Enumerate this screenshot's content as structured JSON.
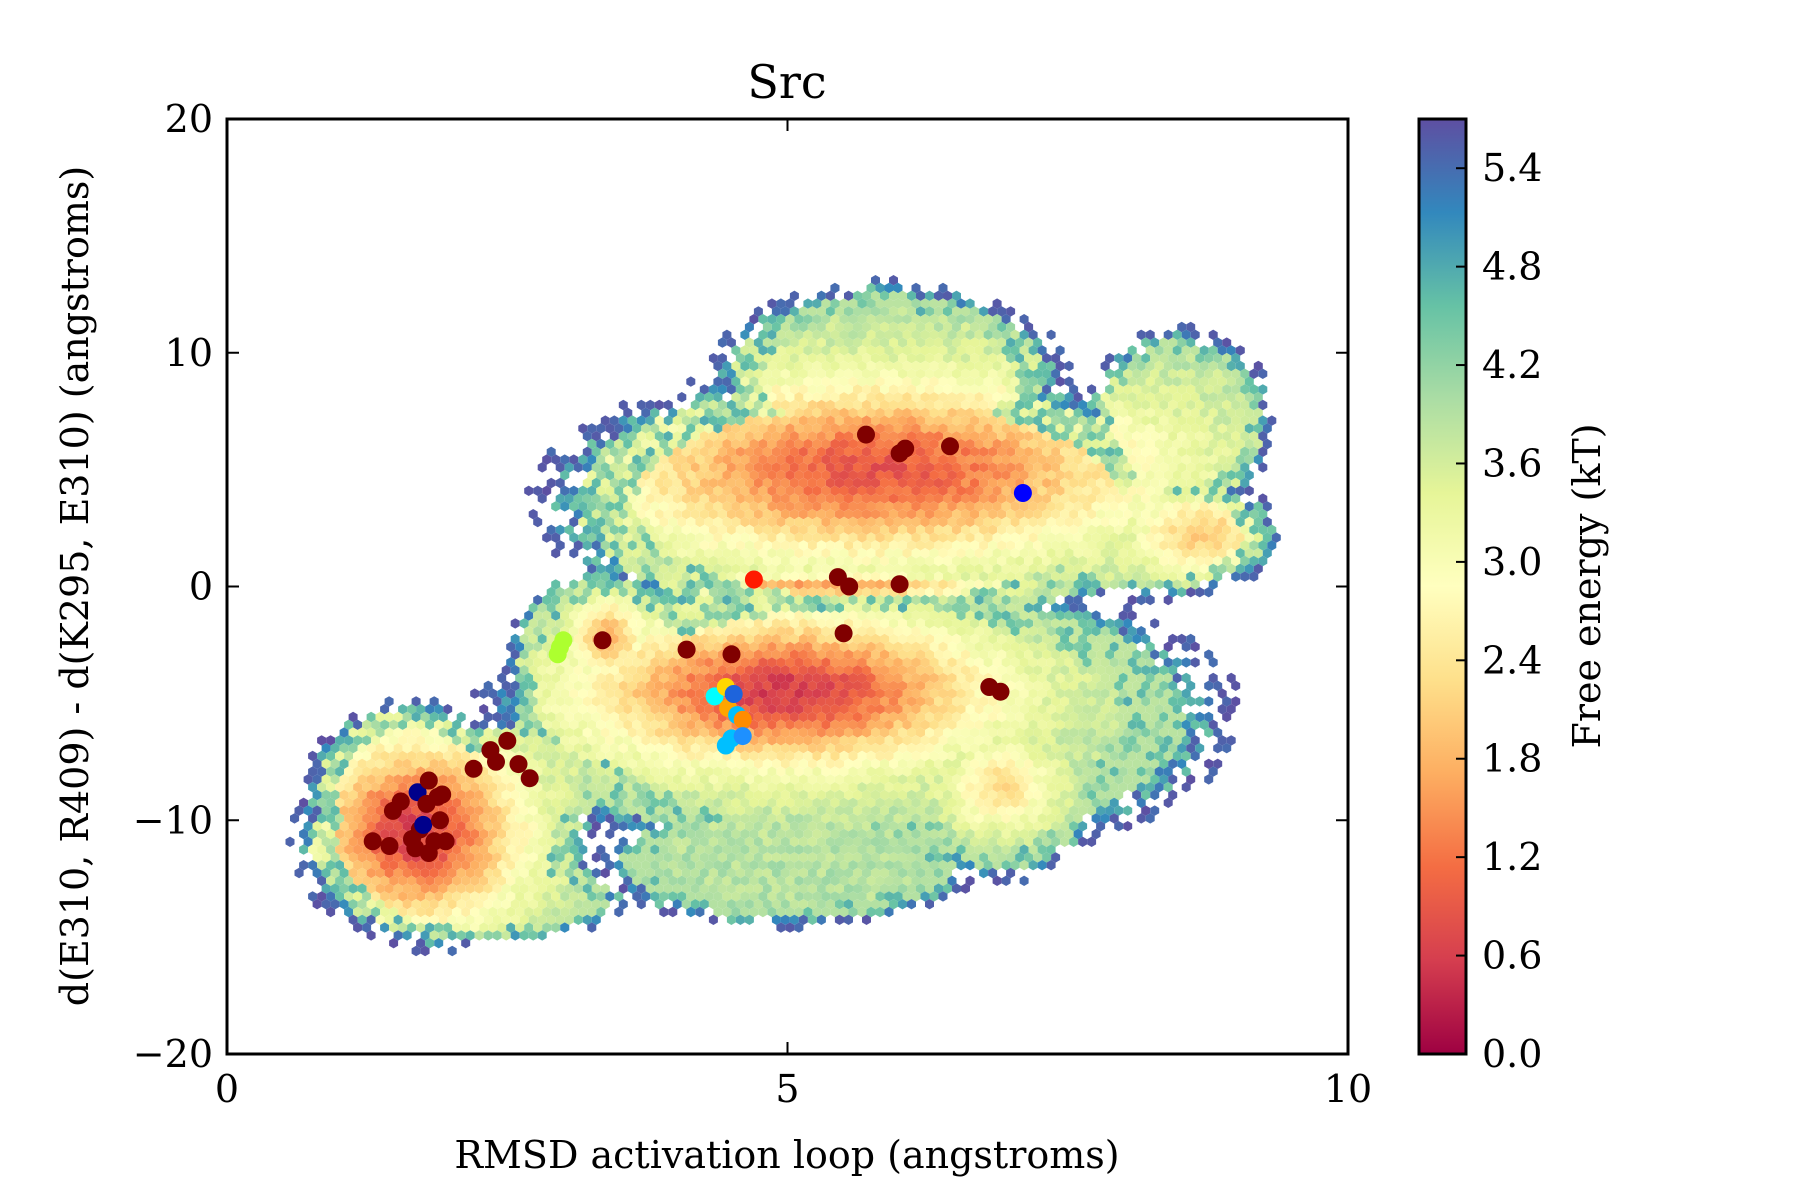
{
  "chart_data": {
    "type": "heatmap",
    "subtype": "hexbin-with-scatter-overlay",
    "title": "Src",
    "xlabel": "RMSD activation loop (angstroms)",
    "ylabel": "d(E310, R409) - d(K295, E310) (angstroms)",
    "xlim": [
      0,
      10
    ],
    "ylim": [
      -20,
      20
    ],
    "xticks": [
      0,
      5,
      10
    ],
    "yticks": [
      -20,
      -10,
      0,
      10,
      20
    ],
    "xtick_labels": [
      "0",
      "5",
      "10"
    ],
    "ytick_labels": [
      "−20",
      "−10",
      "0",
      "10",
      "20"
    ],
    "grid": false,
    "colorbar": {
      "label": "Free energy (kT)",
      "colormap": "Spectral",
      "range": [
        0.0,
        5.7
      ],
      "ticks": [
        0.0,
        0.6,
        1.2,
        1.8,
        2.4,
        3.0,
        3.6,
        4.2,
        4.8,
        5.4
      ],
      "tick_labels": [
        "0.0",
        "0.6",
        "1.2",
        "1.8",
        "2.4",
        "3.0",
        "3.6",
        "4.2",
        "4.8",
        "5.4"
      ],
      "stops": [
        "#9e0142",
        "#d53e4f",
        "#f46d43",
        "#fdae61",
        "#fee08b",
        "#ffffbf",
        "#e6f598",
        "#abdda4",
        "#66c2a5",
        "#3288bd",
        "#5e4fa2"
      ]
    },
    "energy_basins": [
      {
        "x": 1.7,
        "y": -10.5,
        "rx": 0.95,
        "ry": 4.0,
        "depth": 0.6
      },
      {
        "x": 5.8,
        "y": 5.0,
        "rx": 2.4,
        "ry": 3.8,
        "depth": 0.9
      },
      {
        "x": 5.0,
        "y": -4.5,
        "rx": 1.8,
        "ry": 3.2,
        "depth": 0.6
      },
      {
        "x": 3.4,
        "y": -2.2,
        "rx": 0.35,
        "ry": 1.8,
        "depth": 1.8
      },
      {
        "x": 8.7,
        "y": 2.2,
        "rx": 0.6,
        "ry": 1.8,
        "depth": 2.0
      },
      {
        "x": 6.9,
        "y": -8.5,
        "rx": 0.5,
        "ry": 2.0,
        "depth": 2.3
      },
      {
        "x": 5.4,
        "y": 0.0,
        "rx": 1.5,
        "ry": 0.5,
        "depth": 1.5
      }
    ],
    "scatter_points": [
      {
        "x": 1.3,
        "y": -10.9,
        "color": "#800000"
      },
      {
        "x": 1.45,
        "y": -11.1,
        "color": "#800000"
      },
      {
        "x": 1.48,
        "y": -9.6,
        "color": "#800000"
      },
      {
        "x": 1.55,
        "y": -9.2,
        "color": "#800000"
      },
      {
        "x": 1.65,
        "y": -10.8,
        "color": "#800000"
      },
      {
        "x": 1.68,
        "y": -11.2,
        "color": "#800000"
      },
      {
        "x": 1.7,
        "y": -8.8,
        "color": "#00008b"
      },
      {
        "x": 1.72,
        "y": -10.4,
        "color": "#800000"
      },
      {
        "x": 1.75,
        "y": -10.2,
        "color": "#00008b"
      },
      {
        "x": 1.78,
        "y": -9.3,
        "color": "#800000"
      },
      {
        "x": 1.8,
        "y": -8.3,
        "color": "#800000"
      },
      {
        "x": 1.8,
        "y": -11.4,
        "color": "#800000"
      },
      {
        "x": 1.85,
        "y": -10.9,
        "color": "#800000"
      },
      {
        "x": 1.88,
        "y": -9.0,
        "color": "#800000"
      },
      {
        "x": 1.9,
        "y": -10.0,
        "color": "#800000"
      },
      {
        "x": 1.95,
        "y": -10.9,
        "color": "#800000"
      },
      {
        "x": 1.92,
        "y": -8.9,
        "color": "#800000"
      },
      {
        "x": 2.2,
        "y": -7.8,
        "color": "#800000"
      },
      {
        "x": 2.35,
        "y": -7.0,
        "color": "#800000"
      },
      {
        "x": 2.4,
        "y": -7.5,
        "color": "#800000"
      },
      {
        "x": 2.5,
        "y": -6.6,
        "color": "#800000"
      },
      {
        "x": 2.6,
        "y": -7.6,
        "color": "#800000"
      },
      {
        "x": 2.7,
        "y": -8.2,
        "color": "#800000"
      },
      {
        "x": 2.95,
        "y": -2.9,
        "color": "#adff2f"
      },
      {
        "x": 2.97,
        "y": -2.6,
        "color": "#adff2f"
      },
      {
        "x": 3.0,
        "y": -2.3,
        "color": "#adff2f"
      },
      {
        "x": 3.35,
        "y": -2.3,
        "color": "#800000"
      },
      {
        "x": 4.1,
        "y": -2.7,
        "color": "#800000"
      },
      {
        "x": 4.5,
        "y": -2.9,
        "color": "#800000"
      },
      {
        "x": 4.35,
        "y": -4.7,
        "color": "#00ffff"
      },
      {
        "x": 4.45,
        "y": -4.3,
        "color": "#ffd700"
      },
      {
        "x": 4.47,
        "y": -5.2,
        "color": "#ffa500"
      },
      {
        "x": 4.52,
        "y": -4.6,
        "color": "#1e64dc"
      },
      {
        "x": 4.55,
        "y": -5.5,
        "color": "#00bfff"
      },
      {
        "x": 4.6,
        "y": -5.7,
        "color": "#ff8c00"
      },
      {
        "x": 4.5,
        "y": -6.5,
        "color": "#00bfff"
      },
      {
        "x": 4.6,
        "y": -6.4,
        "color": "#1e90ff"
      },
      {
        "x": 4.45,
        "y": -6.8,
        "color": "#00bfff"
      },
      {
        "x": 4.7,
        "y": 0.3,
        "color": "#ff1a00"
      },
      {
        "x": 5.45,
        "y": 0.4,
        "color": "#800000"
      },
      {
        "x": 5.55,
        "y": 0.0,
        "color": "#800000"
      },
      {
        "x": 5.5,
        "y": -2.0,
        "color": "#800000"
      },
      {
        "x": 6.0,
        "y": 0.1,
        "color": "#800000"
      },
      {
        "x": 5.7,
        "y": 6.5,
        "color": "#800000"
      },
      {
        "x": 6.0,
        "y": 5.7,
        "color": "#800000"
      },
      {
        "x": 6.05,
        "y": 5.9,
        "color": "#800000"
      },
      {
        "x": 6.45,
        "y": 6.0,
        "color": "#800000"
      },
      {
        "x": 7.1,
        "y": 4.0,
        "color": "#0000ff"
      },
      {
        "x": 6.8,
        "y": -4.3,
        "color": "#800000"
      },
      {
        "x": 6.9,
        "y": -4.5,
        "color": "#800000"
      }
    ]
  }
}
